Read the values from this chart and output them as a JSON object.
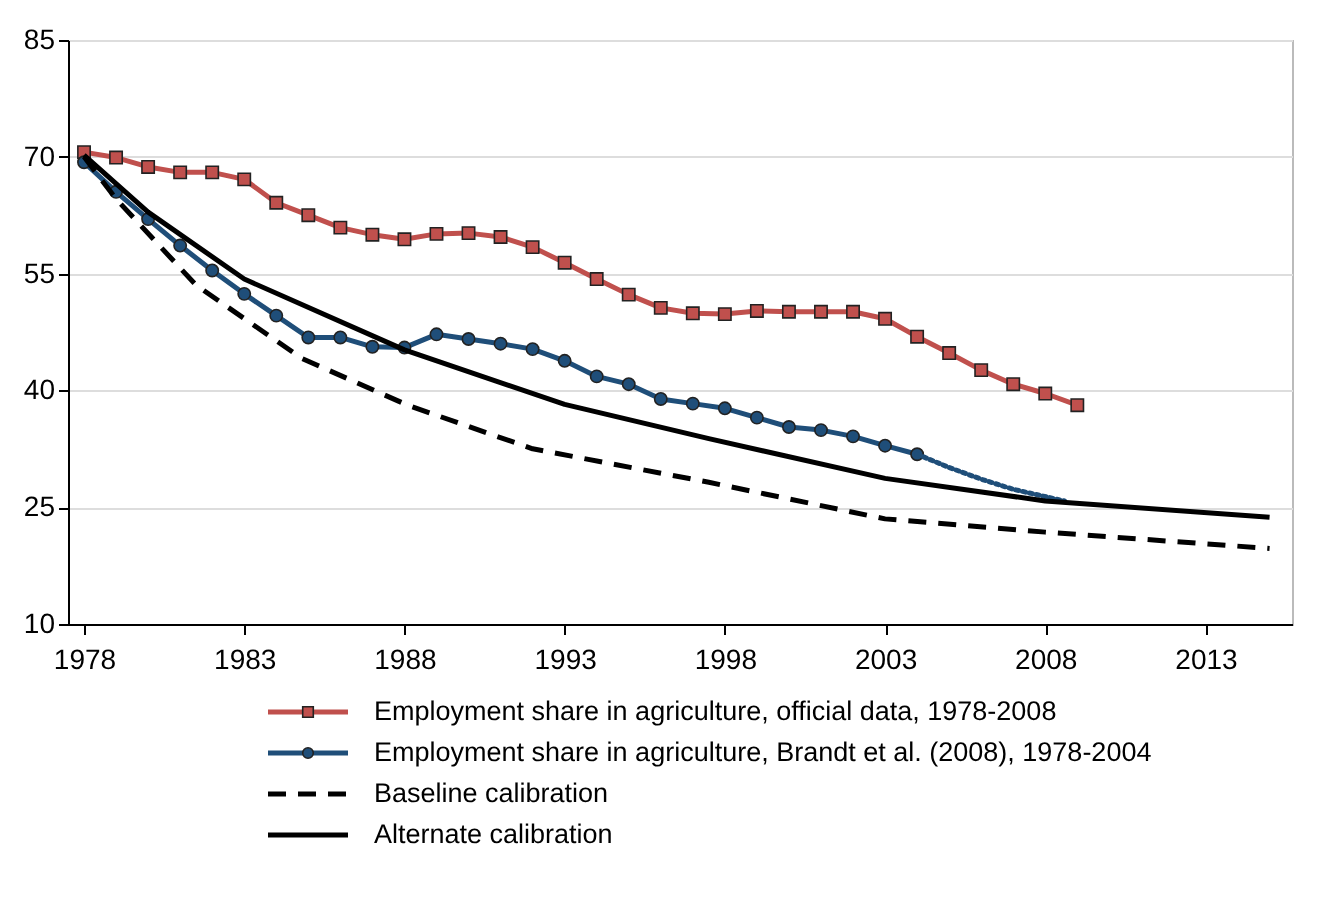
{
  "chart_data": {
    "type": "line",
    "xlim": [
      1977.5,
      2015.7
    ],
    "xticks": [
      1978,
      1983,
      1988,
      1993,
      1998,
      2003,
      2008,
      2013
    ],
    "ylim": [
      10,
      85
    ],
    "yticks": [
      10,
      25,
      40,
      55,
      70,
      85
    ],
    "grid": "y",
    "legend": "bottom",
    "series": [
      {
        "name": "Employment share in agriculture, official data, 1978-2008",
        "color": "#c0504d",
        "marker": "square",
        "line_style": "solid",
        "x": [
          1978,
          1979,
          1980,
          1981,
          1982,
          1983,
          1984,
          1985,
          1986,
          1987,
          1988,
          1989,
          1990,
          1991,
          1992,
          1993,
          1994,
          1995,
          1996,
          1997,
          1998,
          1999,
          2000,
          2001,
          2002,
          2003,
          2004,
          2005,
          2006,
          2007,
          2008,
          2009
        ],
        "values": [
          70.6,
          69.9,
          68.7,
          68.0,
          68.0,
          67.1,
          64.1,
          62.5,
          60.9,
          60.0,
          59.4,
          60.1,
          60.2,
          59.7,
          58.4,
          56.4,
          54.3,
          52.3,
          50.6,
          49.9,
          49.8,
          50.2,
          50.1,
          50.1,
          50.1,
          49.2,
          46.9,
          44.8,
          42.6,
          40.8,
          39.6,
          38.1
        ]
      },
      {
        "name": "Employment share in agriculture, Brandt et al. (2008), 1978-2004",
        "color": "#1f4e79",
        "marker": "circle",
        "line_style": "solid",
        "x": [
          1978,
          1979,
          1980,
          1981,
          1982,
          1983,
          1984,
          1985,
          1986,
          1987,
          1988,
          1989,
          1990,
          1991,
          1992,
          1993,
          1994,
          1995,
          1996,
          1997,
          1998,
          1999,
          2000,
          2001,
          2002,
          2003,
          2004
        ],
        "values": [
          69.3,
          65.5,
          62.0,
          58.6,
          55.4,
          52.4,
          49.6,
          46.8,
          46.8,
          45.6,
          45.5,
          47.2,
          46.6,
          46.0,
          45.3,
          43.8,
          41.8,
          40.8,
          38.9,
          38.3,
          37.7,
          36.5,
          35.3,
          34.9,
          34.1,
          32.9,
          31.8
        ]
      },
      {
        "color": "#1f4e79",
        "marker": "none",
        "line_style": "dotted",
        "x": [
          2004,
          2005,
          2006,
          2007,
          2008.6
        ],
        "values": [
          31.8,
          30.1,
          28.6,
          27.3,
          25.8
        ]
      },
      {
        "name": "Baseline calibration",
        "color": "#000000",
        "marker": "none",
        "line_style": "dashed",
        "x": [
          1978,
          1979,
          1981.5,
          1984.8,
          1988.1,
          1992,
          1997.5,
          2003,
          2008,
          2015
        ],
        "values": [
          70.0,
          64.6,
          53.5,
          44.1,
          38.1,
          32.5,
          28.2,
          23.5,
          21.8,
          19.7
        ]
      },
      {
        "name": "Alternate calibration",
        "color": "#000000",
        "marker": "none",
        "line_style": "solid",
        "x": [
          1978,
          1980,
          1983,
          1988,
          1993,
          1997.5,
          2003,
          2008,
          2015
        ],
        "values": [
          70.2,
          62.9,
          54.3,
          45.2,
          38.2,
          33.8,
          28.7,
          25.8,
          23.7
        ]
      }
    ]
  }
}
